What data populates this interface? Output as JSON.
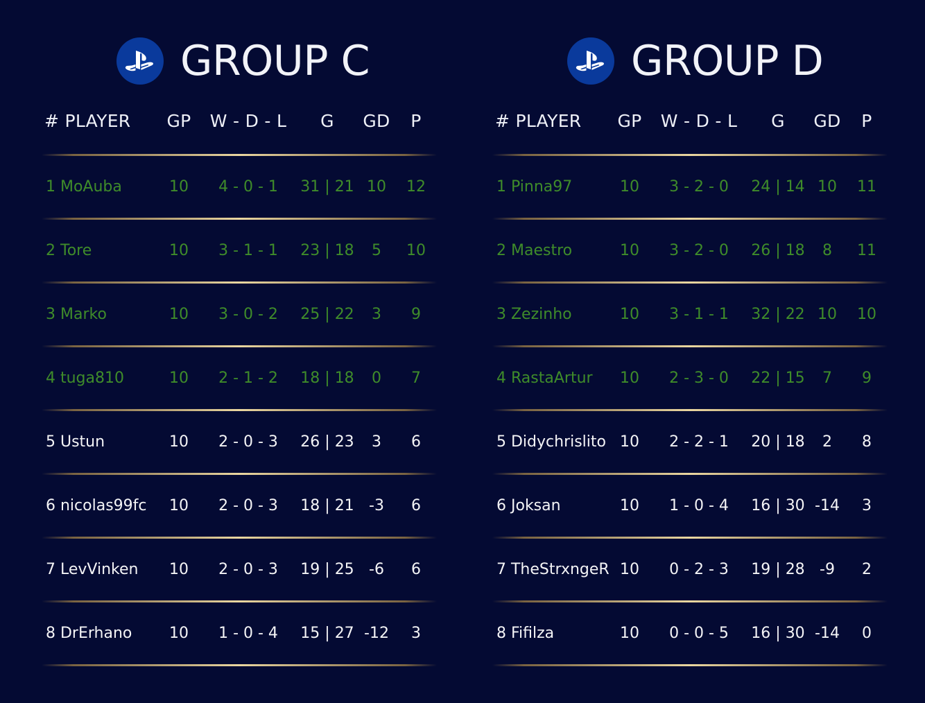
{
  "headers": {
    "player": "# PLAYER",
    "gp": "GP",
    "wdl": "W - D - L",
    "g": "G",
    "gd": "GD",
    "p": "P"
  },
  "colors": {
    "background": "#040a33",
    "qualified_text": "#3f8c2a",
    "default_text": "#f4f4f6",
    "divider_gold": "#d9bf7a",
    "logo_circle": "#0a3a9c"
  },
  "icon": "playstation-logo-icon",
  "groups": [
    {
      "title": "GROUP C",
      "rows": [
        {
          "player": "1 MoAuba",
          "gp": "10",
          "wdl": "4 - 0 - 1",
          "g": "31 | 21",
          "gd": "10",
          "p": "12",
          "qualified": true
        },
        {
          "player": "2 Tore",
          "gp": "10",
          "wdl": "3 - 1 - 1",
          "g": "23 | 18",
          "gd": "5",
          "p": "10",
          "qualified": true
        },
        {
          "player": "3 Marko",
          "gp": "10",
          "wdl": "3 - 0 - 2",
          "g": "25 | 22",
          "gd": "3",
          "p": "9",
          "qualified": true
        },
        {
          "player": "4 tuga810",
          "gp": "10",
          "wdl": "2 - 1 - 2",
          "g": "18 | 18",
          "gd": "0",
          "p": "7",
          "qualified": true
        },
        {
          "player": "5 Ustun",
          "gp": "10",
          "wdl": "2 - 0 - 3",
          "g": "26 | 23",
          "gd": "3",
          "p": "6",
          "qualified": false
        },
        {
          "player": "6 nicolas99fc",
          "gp": "10",
          "wdl": "2 - 0 - 3",
          "g": "18 | 21",
          "gd": "-3",
          "p": "6",
          "qualified": false
        },
        {
          "player": "7 LevVinken",
          "gp": "10",
          "wdl": "2 - 0 - 3",
          "g": "19 | 25",
          "gd": "-6",
          "p": "6",
          "qualified": false
        },
        {
          "player": "8 DrErhano",
          "gp": "10",
          "wdl": "1 - 0 - 4",
          "g": "15 | 27",
          "gd": "-12",
          "p": "3",
          "qualified": false
        }
      ]
    },
    {
      "title": "GROUP D",
      "rows": [
        {
          "player": "1 Pinna97",
          "gp": "10",
          "wdl": "3 - 2 - 0",
          "g": "24 | 14",
          "gd": "10",
          "p": "11",
          "qualified": true
        },
        {
          "player": "2 Maestro",
          "gp": "10",
          "wdl": "3 - 2 - 0",
          "g": "26 | 18",
          "gd": "8",
          "p": "11",
          "qualified": true
        },
        {
          "player": "3 Zezinho",
          "gp": "10",
          "wdl": "3 - 1 - 1",
          "g": "32 | 22",
          "gd": "10",
          "p": "10",
          "qualified": true
        },
        {
          "player": "4 RastaArtur",
          "gp": "10",
          "wdl": "2 - 3 - 0",
          "g": "22 | 15",
          "gd": "7",
          "p": "9",
          "qualified": true
        },
        {
          "player": "5 Didychrislito",
          "gp": "10",
          "wdl": "2 - 2 - 1",
          "g": "20 | 18",
          "gd": "2",
          "p": "8",
          "qualified": false
        },
        {
          "player": "6 Joksan",
          "gp": "10",
          "wdl": "1 - 0 - 4",
          "g": "16 | 30",
          "gd": "-14",
          "p": "3",
          "qualified": false
        },
        {
          "player": "7 TheStrxngeR",
          "gp": "10",
          "wdl": "0 - 2 - 3",
          "g": "19 | 28",
          "gd": "-9",
          "p": "2",
          "qualified": false
        },
        {
          "player": "8 Fifilza",
          "gp": "10",
          "wdl": "0 - 0 - 5",
          "g": "16 | 30",
          "gd": "-14",
          "p": "0",
          "qualified": false
        }
      ]
    }
  ]
}
